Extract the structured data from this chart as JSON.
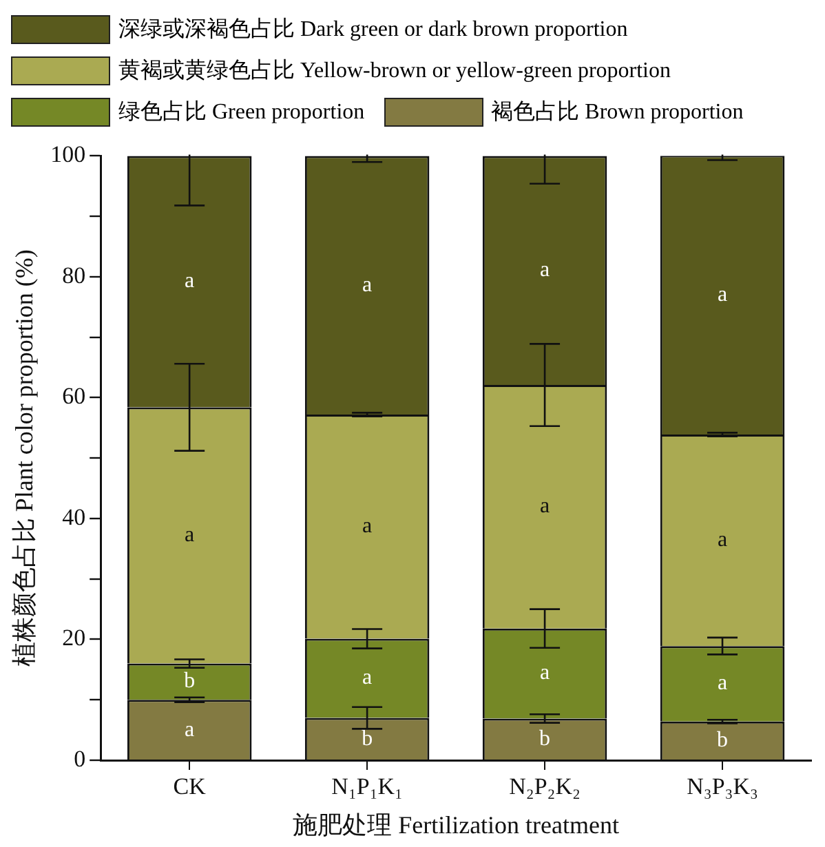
{
  "chart_data": {
    "type": "bar",
    "stacked": true,
    "xlabel": "施肥处理 Fertilization treatment",
    "ylabel": "植株颜色占比 Plant color proportion (%)",
    "categories": [
      "CK",
      "N₁P₁K₁",
      "N₂P₂K₂",
      "N₃P₃K₃"
    ],
    "ylim": [
      0,
      100
    ],
    "yticks": [
      0,
      {
        "value": 10,
        "label": null
      },
      20,
      {
        "value": 30,
        "label": null
      },
      40,
      {
        "value": 50,
        "label": null
      },
      60,
      {
        "value": 70,
        "label": null
      },
      80,
      {
        "value": 90,
        "label": null
      },
      100
    ],
    "grid": false,
    "legend": "top left",
    "series": [
      {
        "name": "褐色占比 Brown proportion",
        "color": "#837a42",
        "values": [
          10,
          7,
          6.9,
          6.4
        ],
        "errors": [
          0.4,
          1.8,
          0.7,
          0.3
        ],
        "value_labels": [
          "a",
          "b",
          "b",
          "b"
        ]
      },
      {
        "name": "绿色占比 Green proportion",
        "color": "#758826",
        "values": [
          6,
          13.1,
          14.9,
          12.5
        ],
        "errors": [
          0.7,
          1.6,
          3.2,
          1.4
        ],
        "value_labels": [
          "b",
          "a",
          "a",
          "a"
        ]
      },
      {
        "name": "黄褐或黄绿色占比 Yellow-brown or yellow-green proportion",
        "color": "#aaaa52",
        "values": [
          42.4,
          37.1,
          40.3,
          35
        ],
        "errors": [
          7.2,
          0.3,
          6.8,
          0.3
        ],
        "value_labels": [
          "a",
          "a",
          "a",
          "a"
        ]
      },
      {
        "name": "深绿或深褐色占比 Dark green or dark brown proportion",
        "color": "#595a1d",
        "values": [
          41.6,
          42.8,
          37.9,
          46.2
        ],
        "errors": [
          8.2,
          1,
          4.6,
          0.8
        ],
        "value_labels": [
          "a",
          "a",
          "a",
          "a"
        ]
      }
    ]
  }
}
